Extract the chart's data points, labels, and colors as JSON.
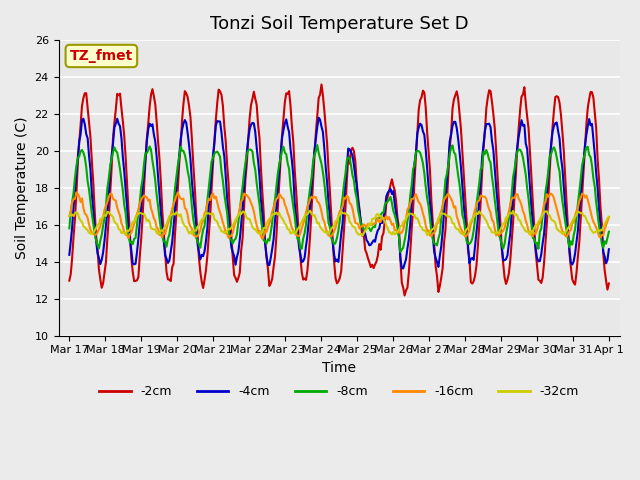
{
  "title": "Tonzi Soil Temperature Set D",
  "xlabel": "Time",
  "ylabel": "Soil Temperature (C)",
  "ylim": [
    10,
    26
  ],
  "yticks": [
    10,
    12,
    14,
    16,
    18,
    20,
    22,
    24,
    26
  ],
  "xtick_labels": [
    "Mar 17",
    "Mar 18",
    "Mar 19",
    "Mar 20",
    "Mar 21",
    "Mar 22",
    "Mar 23",
    "Mar 24",
    "Mar 25",
    "Mar 26",
    "Mar 27",
    "Mar 28",
    "Mar 29",
    "Mar 30",
    "Mar 31",
    "Apr 1"
  ],
  "legend_labels": [
    "-2cm",
    "-4cm",
    "-8cm",
    "-16cm",
    "-32cm"
  ],
  "series_colors": [
    "#cc0000",
    "#0000cc",
    "#00aa00",
    "#ff8800",
    "#cccc00"
  ],
  "annotation_text": "TZ_fmet",
  "annotation_color": "#cc0000",
  "annotation_bg": "#ffffcc",
  "annotation_edge": "#999900",
  "fig_bg": "#ebebeb",
  "plot_bg": "#e8e8e8",
  "grid_color": "#ffffff",
  "title_fontsize": 13,
  "label_fontsize": 10,
  "tick_fontsize": 8,
  "line_width": 1.5
}
